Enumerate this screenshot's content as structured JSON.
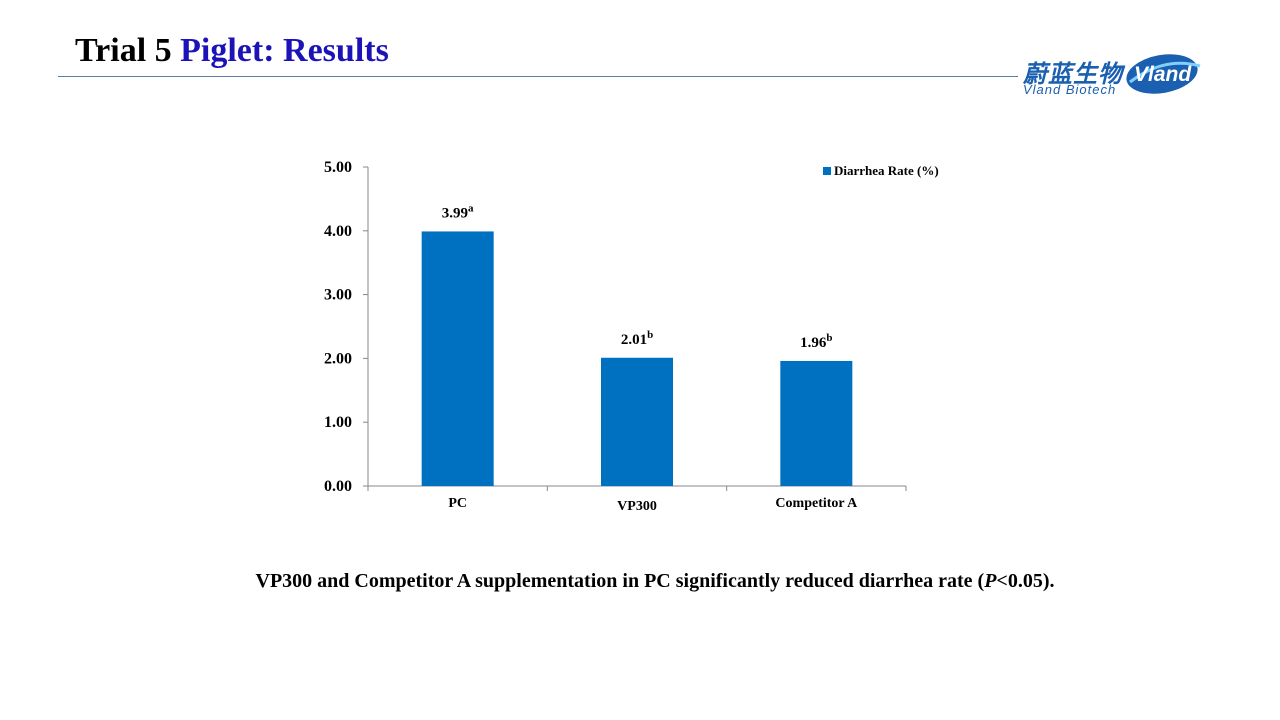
{
  "slide": {
    "title_main": "Trial 5 ",
    "title_accent": "Piglet: Results",
    "caption_before": "VP300 and Competitor A supplementation in PC significantly reduced diarrhea rate (",
    "caption_italic": "P",
    "caption_after": "<0.05)."
  },
  "logo": {
    "chinese": "蔚蓝生物",
    "english": "Vland  Biotech",
    "mark_text": "Vland",
    "color": "#1a5fb0"
  },
  "chart_data": {
    "type": "bar",
    "categories": [
      "PC",
      "VP300",
      "Competitor A"
    ],
    "series": [
      {
        "name": "Diarrhea Rate (%)",
        "values": [
          3.99,
          2.01,
          1.96
        ],
        "color": "#0070c0"
      }
    ],
    "data_labels": [
      {
        "value": "3.99",
        "superscript": "a"
      },
      {
        "value": "2.01",
        "superscript": "b"
      },
      {
        "value": "1.96",
        "superscript": "b"
      }
    ],
    "y_ticks": [
      "0.00",
      "1.00",
      "2.00",
      "3.00",
      "4.00",
      "5.00"
    ],
    "ylim": [
      0,
      5
    ],
    "grid": false,
    "legend_position": "top-right"
  }
}
